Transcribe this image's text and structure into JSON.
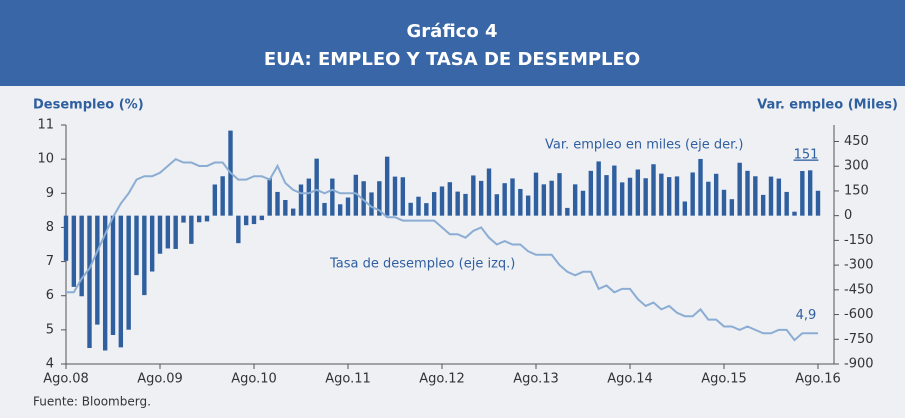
{
  "chart_data": {
    "type": "bar",
    "title": "Gráfico 4",
    "subtitle": "EUA: EMPLEO Y TASA DE DESEMPLEO",
    "ylabel": "Desempleo (%)",
    "y2label": "Var. empleo (Miles)",
    "source": "Fuente: Bloomberg.",
    "annotations": [
      "Var. empleo en miles (eje der.)",
      "Tasa de desempleo (eje izq.)",
      "151",
      "4,9"
    ],
    "categories": [
      "Ago.08",
      null,
      null,
      null,
      null,
      null,
      null,
      null,
      null,
      null,
      null,
      null,
      "Ago.09",
      null,
      null,
      null,
      null,
      null,
      null,
      null,
      null,
      null,
      null,
      null,
      "Ago.10",
      null,
      null,
      null,
      null,
      null,
      null,
      null,
      null,
      null,
      null,
      null,
      "Ago.11",
      null,
      null,
      null,
      null,
      null,
      null,
      null,
      null,
      null,
      null,
      null,
      "Ago.12",
      null,
      null,
      null,
      null,
      null,
      null,
      null,
      null,
      null,
      null,
      null,
      "Ago.13",
      null,
      null,
      null,
      null,
      null,
      null,
      null,
      null,
      null,
      null,
      null,
      "Ago.14",
      null,
      null,
      null,
      null,
      null,
      null,
      null,
      null,
      null,
      null,
      null,
      "Ago.15",
      null,
      null,
      null,
      null,
      null,
      null,
      null,
      null,
      null,
      null,
      null,
      "Ago.16"
    ],
    "series": [
      {
        "name": "Var. empleo en miles (eje der.)",
        "type": "bar",
        "axis": "y2",
        "color": "#2f5f9f",
        "values": [
          -274,
          -432,
          -489,
          -803,
          -661,
          -818,
          -724,
          -799,
          -692,
          -361,
          -482,
          -339,
          -231,
          -199,
          -202,
          -42,
          -171,
          -40,
          -35,
          189,
          239,
          516,
          -167,
          -58,
          -51,
          -27,
          228,
          144,
          95,
          43,
          189,
          225,
          346,
          77,
          225,
          69,
          110,
          248,
          209,
          141,
          209,
          358,
          237,
          233,
          78,
          115,
          76,
          143,
          177,
          203,
          146,
          132,
          244,
          211,
          286,
          130,
          197,
          226,
          162,
          122,
          261,
          190,
          212,
          258,
          47,
          190,
          151,
          272,
          329,
          246,
          304,
          202,
          230,
          280,
          227,
          312,
          255,
          234,
          238,
          86,
          262,
          344,
          206,
          254,
          157,
          100,
          321,
          272,
          239,
          126,
          237,
          225,
          144,
          24,
          271,
          275,
          151
        ]
      },
      {
        "name": "Tasa de desempleo (eje izq.)",
        "type": "line",
        "color": "#8badd3",
        "values": [
          6.1,
          6.1,
          6.5,
          6.8,
          7.3,
          7.8,
          8.3,
          8.7,
          9.0,
          9.4,
          9.5,
          9.5,
          9.6,
          9.8,
          10.0,
          9.9,
          9.9,
          9.8,
          9.8,
          9.9,
          9.9,
          9.6,
          9.4,
          9.4,
          9.5,
          9.5,
          9.4,
          9.8,
          9.3,
          9.1,
          9.0,
          9.0,
          9.1,
          9.0,
          9.1,
          9.0,
          9.0,
          9.0,
          8.8,
          8.6,
          8.5,
          8.3,
          8.3,
          8.2,
          8.2,
          8.2,
          8.2,
          8.2,
          8.0,
          7.8,
          7.8,
          7.7,
          7.9,
          8.0,
          7.7,
          7.5,
          7.6,
          7.5,
          7.5,
          7.3,
          7.2,
          7.2,
          7.2,
          6.9,
          6.7,
          6.6,
          6.7,
          6.7,
          6.2,
          6.3,
          6.1,
          6.2,
          6.2,
          5.9,
          5.7,
          5.8,
          5.6,
          5.7,
          5.5,
          5.4,
          5.4,
          5.6,
          5.3,
          5.3,
          5.1,
          5.1,
          5.0,
          5.1,
          5.0,
          4.9,
          4.9,
          5.0,
          5.0,
          4.7,
          4.9,
          4.9,
          4.9
        ]
      }
    ],
    "ylim": [
      4,
      11
    ],
    "yticks": [
      4,
      5,
      6,
      7,
      8,
      9,
      10,
      11
    ],
    "y2lim": [
      -900,
      550
    ],
    "y2ticks": [
      -900,
      -750,
      -600,
      -450,
      -300,
      -150,
      0,
      150,
      300,
      450
    ]
  }
}
